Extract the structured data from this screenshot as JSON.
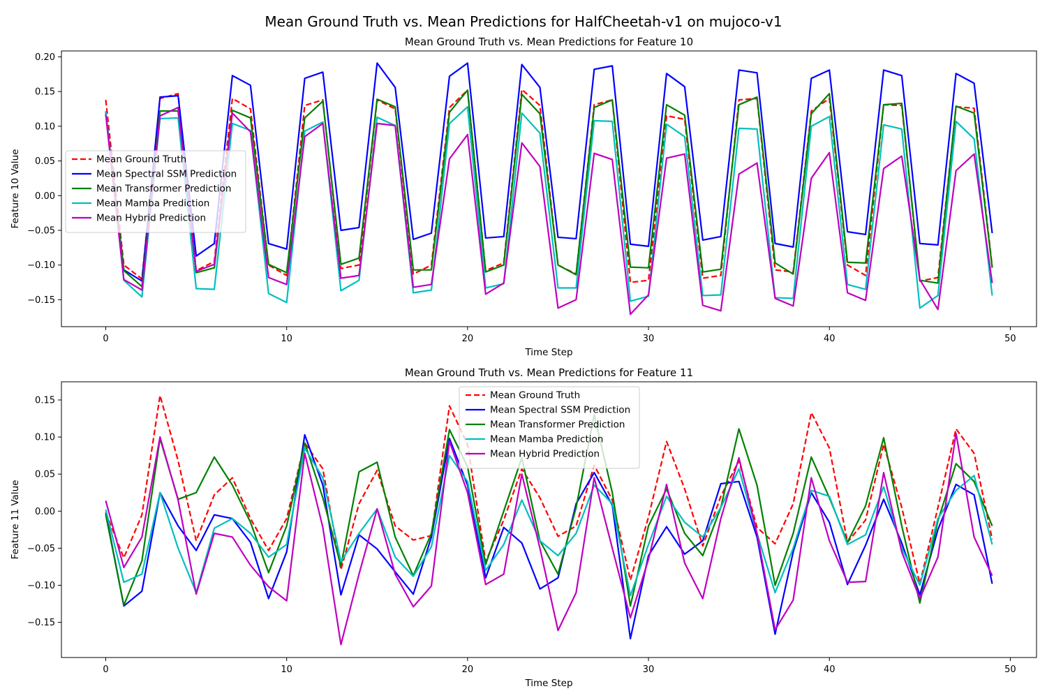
{
  "figure": {
    "suptitle": "Mean Ground Truth vs. Mean Predictions for HalfCheetah-v1 on mujoco-v1"
  },
  "chart_data": [
    {
      "type": "line",
      "title": "Mean Ground Truth vs. Mean Predictions for Feature 10",
      "xlabel": "Time Step",
      "ylabel": "Feature 10 Value",
      "xlim": [
        -2.45,
        51.45
      ],
      "ylim": [
        -0.1888,
        0.2085
      ],
      "xticks": [
        0,
        10,
        20,
        30,
        40,
        50
      ],
      "yticks": [
        -0.15,
        -0.1,
        -0.05,
        0.0,
        0.05,
        0.1,
        0.15,
        0.2
      ],
      "ytick_labels": [
        "−0.15",
        "−0.10",
        "−0.05",
        "0.00",
        "0.05",
        "0.10",
        "0.15",
        "0.20"
      ],
      "legend_position": "center-left",
      "x": [
        0,
        1,
        2,
        3,
        4,
        5,
        6,
        7,
        8,
        9,
        10,
        11,
        12,
        13,
        14,
        15,
        16,
        17,
        18,
        19,
        20,
        21,
        22,
        23,
        24,
        25,
        26,
        27,
        28,
        29,
        30,
        31,
        32,
        33,
        34,
        35,
        36,
        37,
        38,
        39,
        40,
        41,
        42,
        43,
        44,
        45,
        46,
        47,
        48,
        49
      ],
      "series": [
        {
          "name": "Mean Ground Truth",
          "color": "#ff0000",
          "dashed": true,
          "values": [
            0.138,
            -0.1,
            -0.12,
            0.14,
            0.147,
            -0.108,
            -0.095,
            0.14,
            0.125,
            -0.1,
            -0.115,
            0.13,
            0.138,
            -0.105,
            -0.1,
            0.138,
            0.125,
            -0.113,
            -0.1,
            0.127,
            0.152,
            -0.108,
            -0.097,
            0.153,
            0.13,
            -0.1,
            -0.113,
            0.131,
            0.138,
            -0.125,
            -0.122,
            0.115,
            0.11,
            -0.119,
            -0.115,
            0.138,
            0.14,
            -0.107,
            -0.11,
            0.122,
            0.14,
            -0.1,
            -0.115,
            0.131,
            0.13,
            -0.123,
            -0.118,
            0.128,
            0.126,
            -0.102
          ]
        },
        {
          "name": "Mean Spectral SSM Prediction",
          "color": "#0000ff",
          "dashed": false,
          "values": [
            0.12,
            -0.107,
            -0.123,
            0.142,
            0.144,
            -0.087,
            -0.069,
            0.173,
            0.159,
            -0.069,
            -0.077,
            0.169,
            0.178,
            -0.05,
            -0.046,
            0.191,
            0.156,
            -0.063,
            -0.054,
            0.172,
            0.191,
            -0.061,
            -0.059,
            0.189,
            0.156,
            -0.06,
            -0.062,
            0.182,
            0.187,
            -0.07,
            -0.073,
            0.176,
            0.157,
            -0.064,
            -0.059,
            0.181,
            0.177,
            -0.069,
            -0.074,
            0.169,
            0.181,
            -0.052,
            -0.056,
            0.181,
            0.173,
            -0.069,
            -0.071,
            0.176,
            0.162,
            -0.054
          ]
        },
        {
          "name": "Mean Transformer Prediction",
          "color": "#008000",
          "dashed": false,
          "values": [
            0.118,
            -0.108,
            -0.131,
            0.122,
            0.122,
            -0.111,
            -0.104,
            0.123,
            0.112,
            -0.099,
            -0.111,
            0.112,
            0.136,
            -0.099,
            -0.09,
            0.139,
            0.128,
            -0.107,
            -0.107,
            0.12,
            0.152,
            -0.11,
            -0.1,
            0.146,
            0.118,
            -0.1,
            -0.114,
            0.127,
            0.138,
            -0.103,
            -0.104,
            0.131,
            0.116,
            -0.11,
            -0.106,
            0.131,
            0.142,
            -0.097,
            -0.113,
            0.118,
            0.147,
            -0.096,
            -0.097,
            0.131,
            0.133,
            -0.122,
            -0.126,
            0.129,
            0.119,
            -0.104
          ]
        },
        {
          "name": "Mean Mamba Prediction",
          "color": "#00bfbf",
          "dashed": false,
          "values": [
            0.122,
            -0.122,
            -0.146,
            0.111,
            0.112,
            -0.134,
            -0.135,
            0.104,
            0.094,
            -0.141,
            -0.154,
            0.093,
            0.106,
            -0.137,
            -0.122,
            0.113,
            0.101,
            -0.14,
            -0.136,
            0.104,
            0.128,
            -0.133,
            -0.127,
            0.119,
            0.09,
            -0.133,
            -0.133,
            0.108,
            0.107,
            -0.152,
            -0.145,
            0.103,
            0.085,
            -0.144,
            -0.143,
            0.097,
            0.096,
            -0.147,
            -0.148,
            0.1,
            0.114,
            -0.128,
            -0.135,
            0.102,
            0.096,
            -0.162,
            -0.144,
            0.107,
            0.082,
            -0.144
          ]
        },
        {
          "name": "Mean Hybrid Prediction",
          "color": "#bf00bf",
          "dashed": false,
          "values": [
            0.117,
            -0.121,
            -0.136,
            0.115,
            0.127,
            -0.109,
            -0.099,
            0.119,
            0.092,
            -0.118,
            -0.128,
            0.085,
            0.104,
            -0.119,
            -0.115,
            0.104,
            0.101,
            -0.132,
            -0.128,
            0.053,
            0.088,
            -0.142,
            -0.126,
            0.076,
            0.042,
            -0.162,
            -0.15,
            0.061,
            0.052,
            -0.171,
            -0.143,
            0.054,
            0.06,
            -0.158,
            -0.166,
            0.031,
            0.047,
            -0.148,
            -0.159,
            0.025,
            0.062,
            -0.14,
            -0.151,
            0.039,
            0.057,
            -0.121,
            -0.164,
            0.036,
            0.06,
            -0.126
          ]
        }
      ]
    },
    {
      "type": "line",
      "title": "Mean Ground Truth vs. Mean Predictions for Feature 11",
      "xlabel": "Time Step",
      "ylabel": "Feature 11 Value",
      "xlim": [
        -2.45,
        51.45
      ],
      "ylim": [
        -0.1975,
        0.1745
      ],
      "xticks": [
        0,
        10,
        20,
        30,
        40,
        50
      ],
      "yticks": [
        -0.15,
        -0.1,
        -0.05,
        0.0,
        0.05,
        0.1,
        0.15
      ],
      "ytick_labels": [
        "−0.15",
        "−0.10",
        "−0.05",
        "0.00",
        "0.05",
        "0.10",
        "0.15"
      ],
      "legend_position": "upper-center",
      "x": [
        0,
        1,
        2,
        3,
        4,
        5,
        6,
        7,
        8,
        9,
        10,
        11,
        12,
        13,
        14,
        15,
        16,
        17,
        18,
        19,
        20,
        21,
        22,
        23,
        24,
        25,
        26,
        27,
        28,
        29,
        30,
        31,
        32,
        33,
        34,
        35,
        36,
        37,
        38,
        39,
        40,
        41,
        42,
        43,
        44,
        45,
        46,
        47,
        48,
        49
      ],
      "series": [
        {
          "name": "Mean Ground Truth",
          "color": "#ff0000",
          "dashed": true,
          "values": [
            -0.002,
            -0.063,
            -0.005,
            0.156,
            0.068,
            -0.04,
            0.022,
            0.045,
            -0.01,
            -0.053,
            -0.01,
            0.092,
            0.057,
            -0.079,
            0.01,
            0.055,
            -0.02,
            -0.039,
            -0.033,
            0.142,
            0.09,
            -0.068,
            -0.012,
            0.057,
            0.018,
            -0.034,
            -0.02,
            0.062,
            0.015,
            -0.093,
            -0.008,
            0.094,
            0.03,
            -0.047,
            0.02,
            0.068,
            -0.022,
            -0.044,
            0.01,
            0.133,
            0.085,
            -0.042,
            -0.012,
            0.09,
            0.005,
            -0.098,
            0.005,
            0.111,
            0.078,
            -0.038
          ]
        },
        {
          "name": "Mean Spectral SSM Prediction",
          "color": "#0000ff",
          "dashed": false,
          "values": [
            -0.002,
            -0.128,
            -0.108,
            0.025,
            -0.02,
            -0.053,
            -0.005,
            -0.01,
            -0.042,
            -0.118,
            -0.055,
            0.103,
            0.035,
            -0.113,
            -0.032,
            -0.051,
            -0.082,
            -0.112,
            -0.035,
            0.098,
            0.035,
            -0.09,
            -0.022,
            -0.043,
            -0.105,
            -0.09,
            0.01,
            0.052,
            0.008,
            -0.172,
            -0.06,
            -0.021,
            -0.058,
            -0.04,
            0.037,
            0.04,
            -0.035,
            -0.166,
            -0.055,
            0.025,
            -0.015,
            -0.099,
            -0.046,
            0.016,
            -0.043,
            -0.113,
            -0.025,
            0.036,
            0.022,
            -0.098
          ]
        },
        {
          "name": "Mean Transformer Prediction",
          "color": "#008000",
          "dashed": false,
          "values": [
            -0.005,
            -0.127,
            -0.067,
            0.098,
            0.016,
            0.025,
            0.073,
            0.035,
            -0.015,
            -0.083,
            -0.02,
            0.092,
            0.018,
            -0.074,
            0.053,
            0.066,
            -0.035,
            -0.087,
            -0.03,
            0.11,
            0.06,
            -0.072,
            0.0,
            0.072,
            -0.04,
            -0.085,
            0.005,
            0.13,
            0.025,
            -0.128,
            -0.02,
            0.03,
            -0.03,
            -0.06,
            0.005,
            0.111,
            0.035,
            -0.1,
            -0.03,
            0.073,
            0.018,
            -0.042,
            0.007,
            0.099,
            -0.02,
            -0.124,
            -0.013,
            0.064,
            0.04,
            -0.02
          ]
        },
        {
          "name": "Mean Mamba Prediction",
          "color": "#00bfbf",
          "dashed": false,
          "values": [
            0.002,
            -0.096,
            -0.085,
            0.025,
            -0.05,
            -0.11,
            -0.023,
            -0.01,
            -0.03,
            -0.062,
            -0.045,
            0.085,
            0.045,
            -0.068,
            -0.03,
            0.003,
            -0.062,
            -0.088,
            -0.048,
            0.075,
            0.04,
            -0.08,
            -0.045,
            0.015,
            -0.04,
            -0.06,
            -0.03,
            0.035,
            0.01,
            -0.114,
            -0.045,
            0.02,
            -0.015,
            -0.035,
            0.005,
            0.057,
            -0.03,
            -0.11,
            -0.05,
            0.028,
            0.02,
            -0.045,
            -0.032,
            0.033,
            -0.05,
            -0.1,
            -0.01,
            0.028,
            0.048,
            -0.045
          ]
        },
        {
          "name": "Mean Hybrid Prediction",
          "color": "#bf00bf",
          "dashed": false,
          "values": [
            0.014,
            -0.076,
            -0.035,
            0.1,
            0.015,
            -0.112,
            -0.03,
            -0.035,
            -0.073,
            -0.102,
            -0.121,
            0.078,
            -0.022,
            -0.18,
            -0.085,
            0.003,
            -0.085,
            -0.129,
            -0.101,
            0.094,
            0.025,
            -0.099,
            -0.085,
            0.05,
            -0.05,
            -0.161,
            -0.11,
            0.045,
            -0.05,
            -0.144,
            -0.065,
            0.036,
            -0.07,
            -0.118,
            -0.01,
            0.072,
            -0.03,
            -0.16,
            -0.12,
            0.045,
            -0.04,
            -0.096,
            -0.095,
            0.052,
            -0.055,
            -0.118,
            -0.062,
            0.105,
            -0.035,
            -0.087
          ]
        }
      ]
    }
  ]
}
